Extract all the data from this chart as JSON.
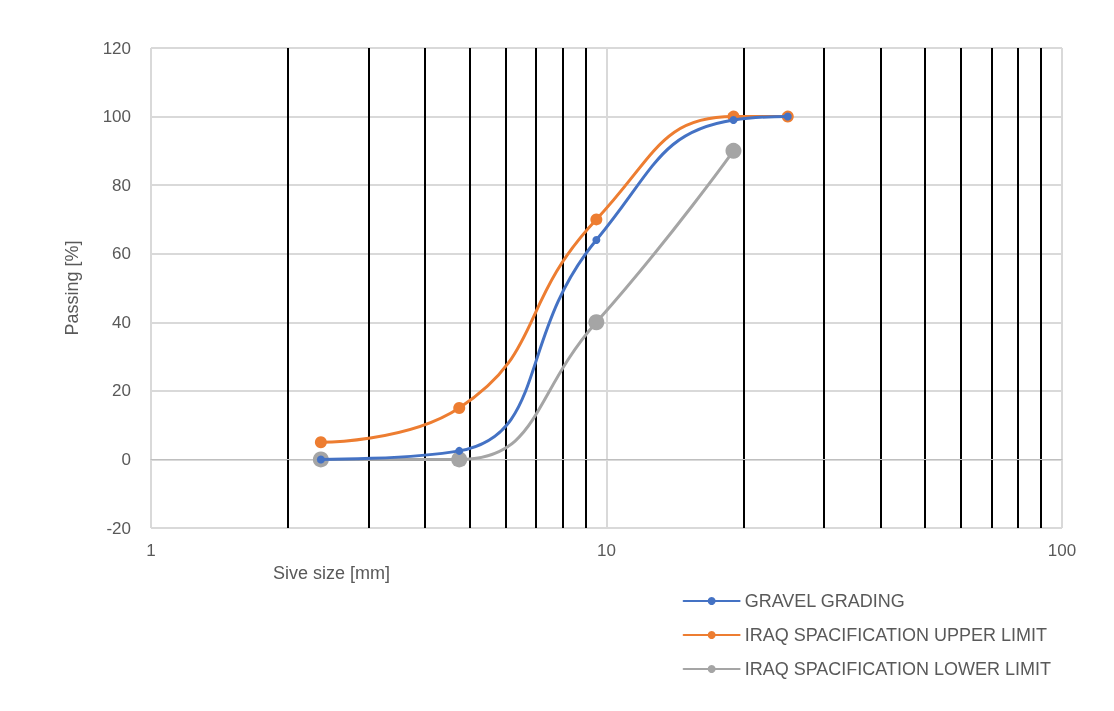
{
  "chart_data": {
    "type": "line",
    "xlabel": "Sive size [mm]",
    "ylabel": "Passing [%]",
    "log": "x",
    "xlim": [
      1,
      100
    ],
    "xticks": [
      1,
      10,
      100
    ],
    "ylim": [
      -20,
      120
    ],
    "yticks": [
      -20,
      0,
      20,
      40,
      60,
      80,
      100,
      120
    ],
    "grid": true,
    "legend": "bottom right",
    "marker": "circle",
    "line_style": "solid",
    "series": [
      {
        "name": "GRAVEL GRADING",
        "color": "#4472c4",
        "x": [
          2.36,
          4.75,
          9.5,
          19,
          25
        ],
        "values": [
          0,
          2.5,
          64,
          99,
          100
        ]
      },
      {
        "name": "IRAQ SPACIFICATION UPPER LIMIT",
        "color": "#ed7d31",
        "x": [
          2.36,
          4.75,
          9.5,
          19,
          25
        ],
        "values": [
          5,
          15,
          70,
          100,
          100
        ]
      },
      {
        "name": "IRAQ SPACIFICATION LOWER LIMIT",
        "color": "#a5a5a5",
        "x": [
          2.36,
          4.75,
          9.5,
          19
        ],
        "values": [
          0,
          0,
          40,
          90
        ]
      }
    ]
  }
}
